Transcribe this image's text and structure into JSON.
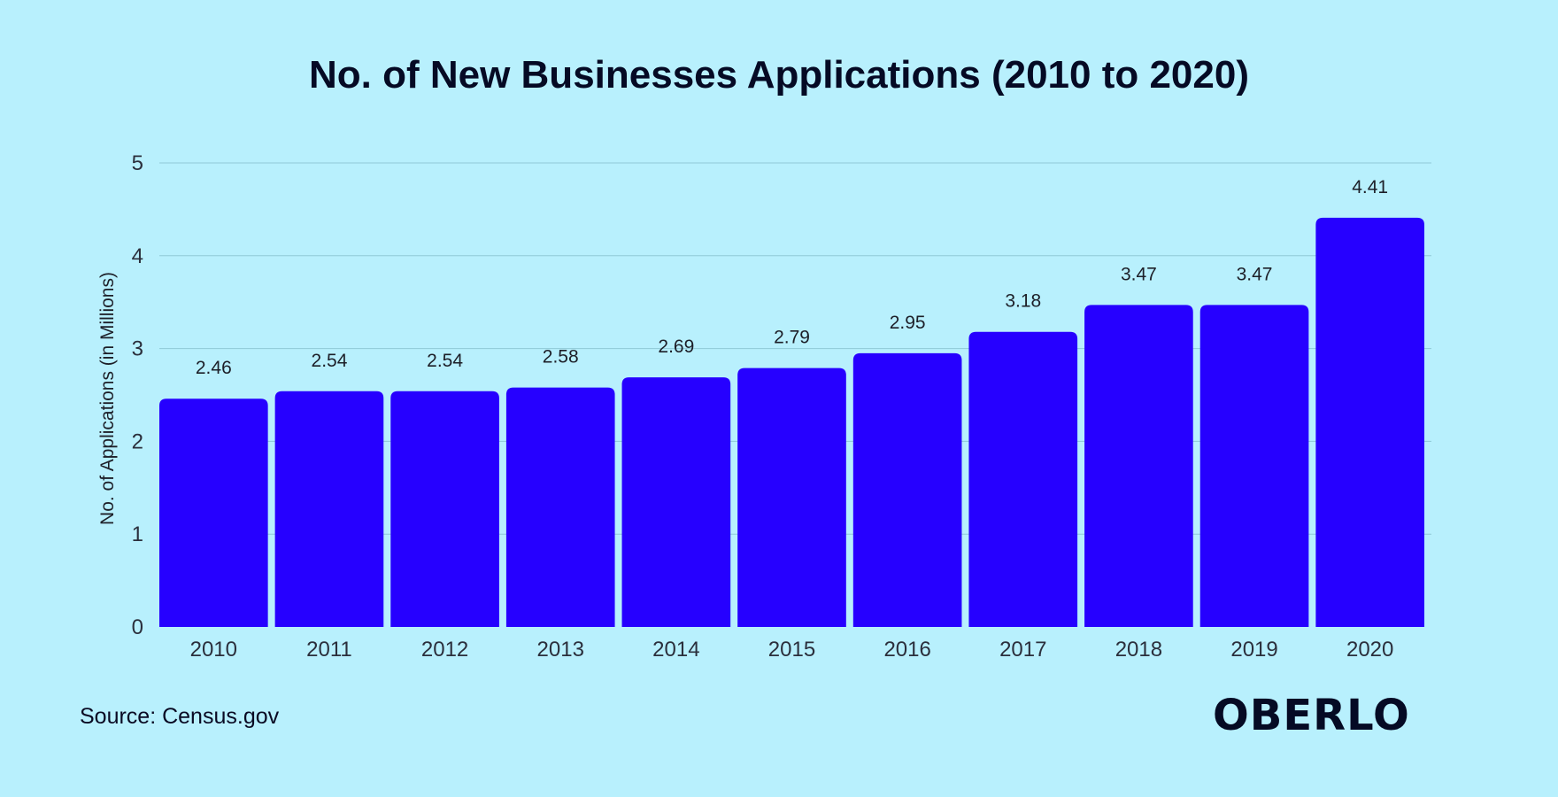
{
  "chart_data": {
    "type": "bar",
    "title": "No. of New Businesses Applications (2010 to 2020)",
    "xlabel": "",
    "ylabel": "No. of Applications (in Millions)",
    "categories": [
      "2010",
      "2011",
      "2012",
      "2013",
      "2014",
      "2015",
      "2016",
      "2017",
      "2018",
      "2019",
      "2020"
    ],
    "values": [
      2.46,
      2.54,
      2.54,
      2.58,
      2.69,
      2.79,
      2.95,
      3.18,
      3.47,
      3.47,
      4.41
    ],
    "data_labels": [
      "2.46",
      "2.54",
      "2.54",
      "2.58",
      "2.69",
      "2.79",
      "2.95",
      "3.18",
      "3.47",
      "3.47",
      "4.41"
    ],
    "yticks": [
      "0",
      "1",
      "2",
      "3",
      "4",
      "5"
    ],
    "ylim": [
      0,
      5
    ],
    "grid": true,
    "legend": "none",
    "bar_color": "#2600ff",
    "background_color": "#b8f0fd",
    "grid_color": "#8fc9d6"
  },
  "footer": {
    "source": "Source: Census.gov",
    "brand": "OBERLO"
  }
}
